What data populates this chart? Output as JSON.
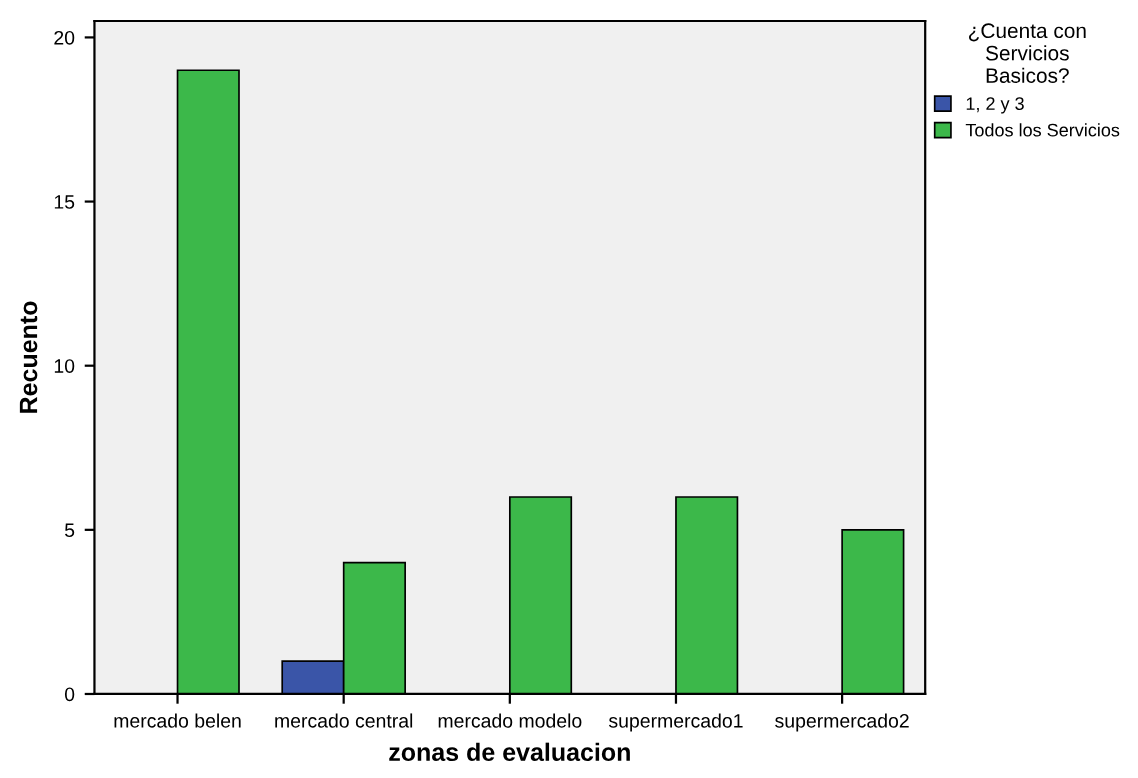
{
  "chart_data": {
    "type": "bar",
    "xlabel": "zonas de evaluacion",
    "ylabel": "Recuento",
    "legend_title": "¿Cuenta con Servicios Basicos?",
    "categories": [
      "mercado belen",
      "mercado central",
      "mercado modelo",
      "supermercado1",
      "supermercado2"
    ],
    "series": [
      {
        "name": "1, 2 y 3",
        "color": "#3a55a8",
        "values": [
          null,
          1,
          null,
          null,
          null
        ]
      },
      {
        "name": "Todos los Servicios",
        "color": "#3cb84a",
        "values": [
          19,
          4,
          6,
          6,
          5
        ]
      }
    ],
    "ylim": [
      0,
      20.5
    ],
    "yticks": [
      0,
      5,
      10,
      15,
      20
    ],
    "grid": false,
    "legend": "top right"
  }
}
